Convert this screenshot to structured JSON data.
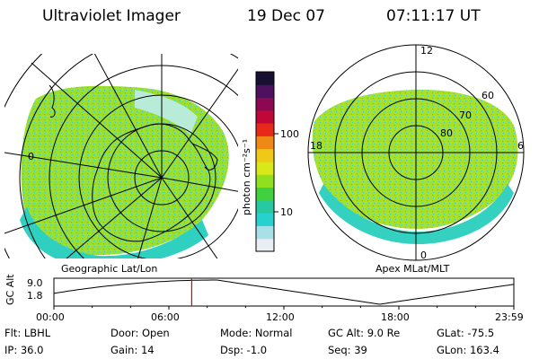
{
  "header": {
    "instrument": "Ultraviolet Imager",
    "date": "19 Dec 07",
    "time": "07:11:17 UT"
  },
  "geo_map": {
    "label": "Geographic Lat/Lon",
    "lon_label": "0"
  },
  "colorbar": {
    "unit_label": "photon cm⁻²s⁻¹",
    "tick_100": "100",
    "tick_10": "10",
    "colors": [
      "#e8eef2",
      "#a8e0e8",
      "#28d0d0",
      "#28c8a0",
      "#40d040",
      "#90e020",
      "#d8e818",
      "#f0c818",
      "#f08818",
      "#e82818",
      "#c00838",
      "#8c0850",
      "#501060",
      "#181030"
    ]
  },
  "mag_map": {
    "label": "Apex MLat/MLT",
    "mlt_12": "12",
    "mlt_18": "18",
    "mlt_6": "6",
    "mlt_0": "0",
    "lat_60": "60",
    "lat_70": "70",
    "lat_80": "80"
  },
  "timeline": {
    "axis_label": "GC Alt",
    "y_top": "9.0",
    "y_bottom": "1.8",
    "x_ticks": [
      "00:00",
      "06:00",
      "12:00",
      "18:00",
      "23:59"
    ],
    "current_hour": 7.19
  },
  "info": {
    "flt": "Flt: LBHL",
    "ip": "IP: 36.0",
    "door": "Door: Open",
    "gain": "Gain: 14",
    "mode": "Mode: Normal",
    "dsp": "Dsp:   -1.0",
    "gcalt": "GC Alt: 9.0 Re",
    "seq": "Seq: 39",
    "glat": "GLat: -75.5",
    "glon": "GLon: 163.4"
  }
}
